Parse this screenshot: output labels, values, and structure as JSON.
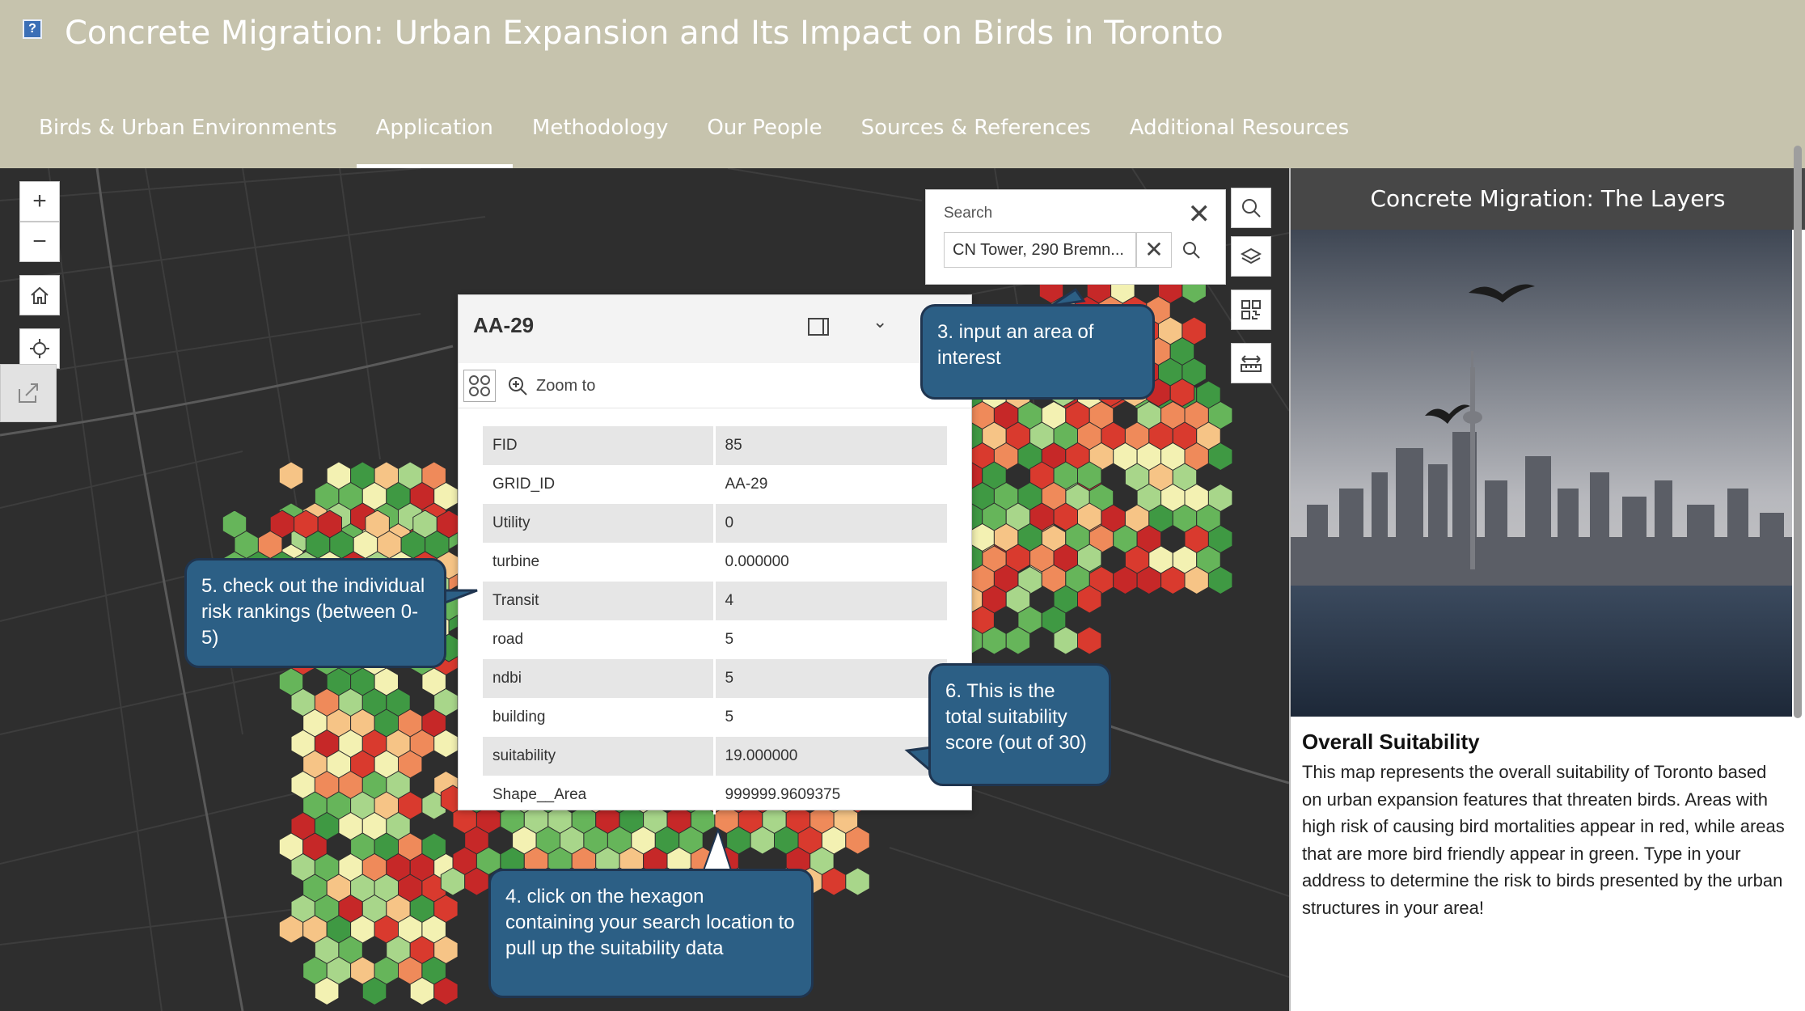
{
  "header": {
    "help_icon": "?",
    "title": "Concrete Migration: Urban Expansion and Its Impact on Birds in Toronto",
    "tabs": [
      {
        "label": "Birds & Urban Environments",
        "active": false
      },
      {
        "label": "Application",
        "active": true
      },
      {
        "label": "Methodology",
        "active": false
      },
      {
        "label": "Our People",
        "active": false
      },
      {
        "label": "Sources & References",
        "active": false
      },
      {
        "label": "Additional Resources",
        "active": false
      }
    ]
  },
  "map": {
    "zoom_in": "+",
    "zoom_out": "−",
    "search": {
      "title": "Search",
      "value": "CN Tower, 290 Bremn...",
      "close": "✕",
      "clear": "✕"
    },
    "popup": {
      "title": "AA-29",
      "collapse": "⌄",
      "zoom_label": "Zoom to",
      "attributes": [
        {
          "key": "FID",
          "value": "85"
        },
        {
          "key": "GRID_ID",
          "value": "AA-29"
        },
        {
          "key": "Utility",
          "value": "0"
        },
        {
          "key": "turbine",
          "value": "0.000000"
        },
        {
          "key": "Transit",
          "value": "4"
        },
        {
          "key": "road",
          "value": "5"
        },
        {
          "key": "ndbi",
          "value": "5"
        },
        {
          "key": "building",
          "value": "5"
        },
        {
          "key": "suitability",
          "value": "19.000000"
        },
        {
          "key": "Shape__Area",
          "value": "999999.9609375"
        }
      ]
    },
    "callouts": {
      "step3": "3. input an area of interest",
      "step4": "4. click on the hexagon containing your search location to pull up the suitability data",
      "step5": "5. check out the individual risk rankings (between 0-5)",
      "step6": "6. This is the total suitability score (out of 30)"
    },
    "hex_colors": {
      "dark_green": "#3f9943",
      "green": "#66b55a",
      "light_green": "#a8d68a",
      "pale_yellow": "#f3f1b2",
      "peach": "#f6c486",
      "orange": "#ef8a5a",
      "red": "#d93a2e",
      "dark_red": "#c62828"
    }
  },
  "side": {
    "header": "Concrete Migration: The Layers",
    "subtitle": "Overall Suitability",
    "description": "This map represents the overall suitability of Toronto based on urban expansion features that threaten birds. Areas with high risk of causing bird mortalities appear in red, while areas that are more bird friendly appear in green. Type in your address to determine the risk to birds presented by the urban structures in your area!"
  }
}
